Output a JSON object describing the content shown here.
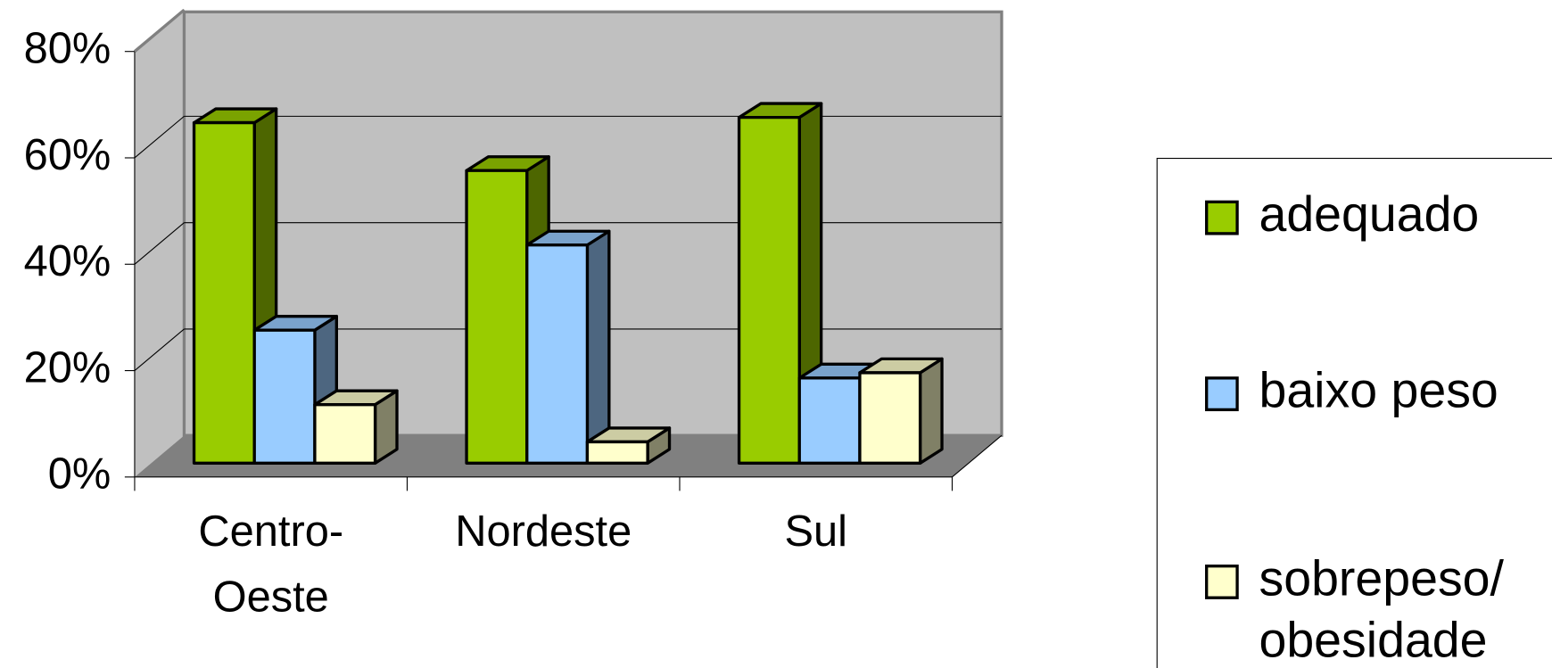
{
  "chart_data": {
    "type": "bar3d",
    "categories": [
      "Centro-Oeste",
      "Nordeste",
      "Sul"
    ],
    "series": [
      {
        "name": "adequado",
        "color": "#99cc00",
        "values": [
          64,
          55,
          65
        ]
      },
      {
        "name": "baixo peso",
        "color": "#99ccff",
        "values": [
          25,
          41,
          16
        ]
      },
      {
        "name": "sobrepeso/obesidade",
        "color": "#ffffcc",
        "values": [
          11,
          4,
          17
        ]
      }
    ],
    "ylim": [
      0,
      80
    ],
    "yticks": [
      {
        "value": 0,
        "label": "0%"
      },
      {
        "value": 20,
        "label": "20%"
      },
      {
        "value": 40,
        "label": "40%"
      },
      {
        "value": 60,
        "label": "60%"
      },
      {
        "value": 80,
        "label": "80%"
      }
    ],
    "grid": true,
    "legend": "right"
  }
}
